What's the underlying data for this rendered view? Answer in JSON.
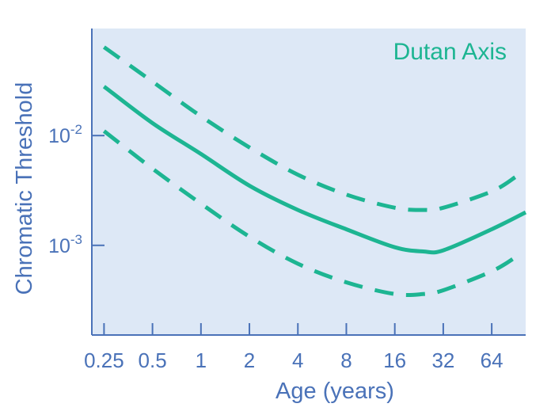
{
  "chart_data": {
    "type": "line",
    "title": "",
    "xlabel": "Age (years)",
    "ylabel": "Chromatic Threshold",
    "x_scale": "log2",
    "y_scale": "log10",
    "xlim": [
      0.21,
      104
    ],
    "ylim": [
      0.000155,
      0.0945
    ],
    "x_ticks": [
      {
        "value": 0.25,
        "label": "0.25"
      },
      {
        "value": 0.5,
        "label": "0.5"
      },
      {
        "value": 1,
        "label": "1"
      },
      {
        "value": 2,
        "label": "2"
      },
      {
        "value": 4,
        "label": "4"
      },
      {
        "value": 8,
        "label": "8"
      },
      {
        "value": 16,
        "label": "16"
      },
      {
        "value": 32,
        "label": "32"
      },
      {
        "value": 64,
        "label": "64"
      }
    ],
    "y_ticks": [
      {
        "value": 0.01,
        "base": "10",
        "exp": "-2"
      },
      {
        "value": 0.001,
        "base": "10",
        "exp": "-3"
      }
    ],
    "grid": false,
    "annotation": "Dutan Axis",
    "colors": {
      "series": "#1db592",
      "axis": "#4a72b8",
      "plot_bg": "#dde8f6"
    },
    "series": [
      {
        "role": "upper bound",
        "style": "dashed",
        "x": [
          0.25,
          0.5,
          1,
          2,
          4,
          8,
          16,
          24,
          32,
          64,
          90
        ],
        "y": [
          0.064,
          0.031,
          0.015,
          0.0078,
          0.0044,
          0.0029,
          0.0022,
          0.0021,
          0.0022,
          0.0031,
          0.0042
        ]
      },
      {
        "role": "mean",
        "style": "solid",
        "x": [
          0.25,
          0.5,
          1,
          2,
          4,
          8,
          16,
          24,
          32,
          64,
          104
        ],
        "y": [
          0.028,
          0.013,
          0.0068,
          0.0035,
          0.0021,
          0.0014,
          0.00096,
          0.00088,
          0.0009,
          0.0014,
          0.002
        ]
      },
      {
        "role": "lower bound",
        "style": "dashed",
        "x": [
          0.25,
          0.5,
          1,
          2,
          4,
          8,
          16,
          24,
          32,
          64,
          90
        ],
        "y": [
          0.011,
          0.005,
          0.0024,
          0.0012,
          0.00068,
          0.00046,
          0.00036,
          0.00036,
          0.00039,
          0.00058,
          0.00078
        ]
      }
    ]
  }
}
